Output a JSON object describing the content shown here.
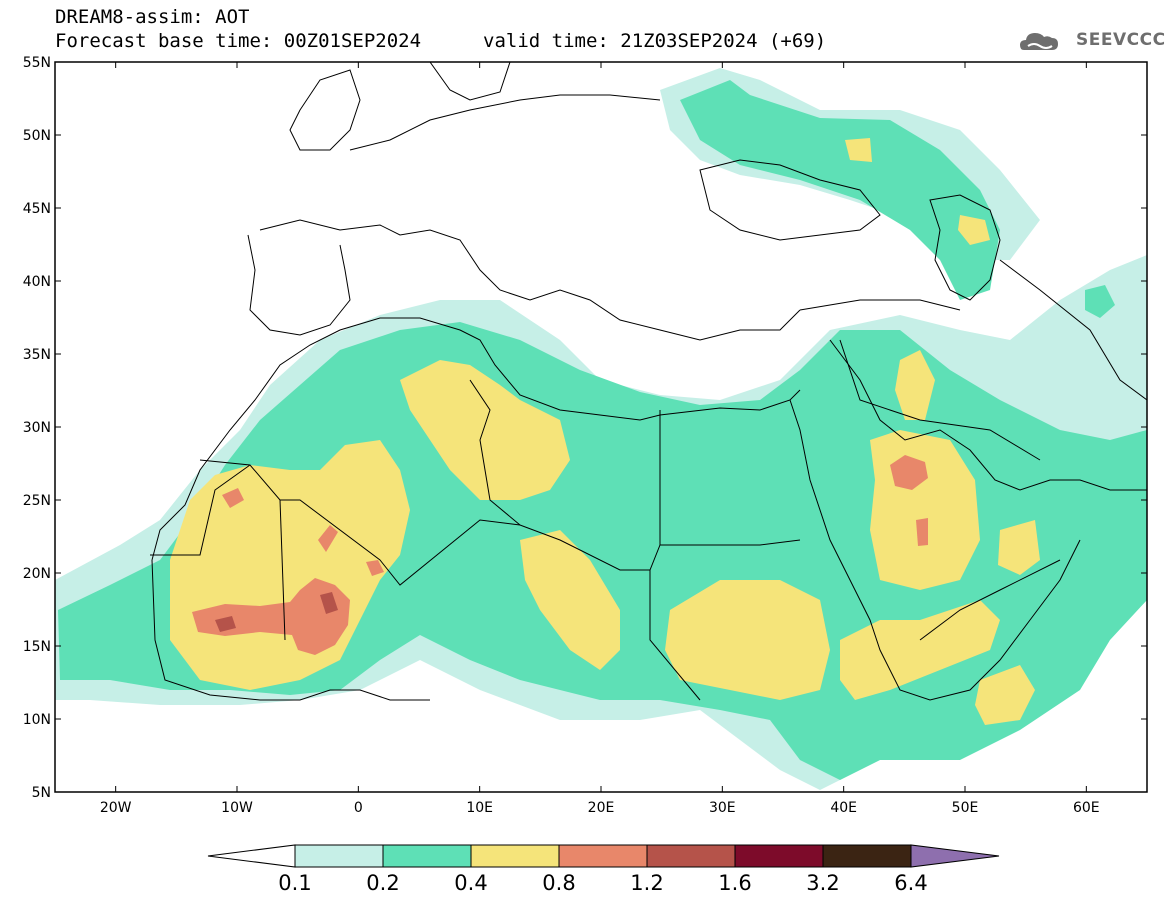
{
  "header": {
    "title": "DREAM8-assim: AOT",
    "base_time": "Forecast base time: 00Z01SEP2024",
    "valid_time": "valid time: 21Z03SEP2024 (+69)",
    "logo_text": "SEEVCCC"
  },
  "map": {
    "lat_labels": [
      "55N",
      "50N",
      "45N",
      "40N",
      "35N",
      "30N",
      "25N",
      "20N",
      "15N",
      "10N",
      "5N"
    ],
    "lon_labels": [
      "20W",
      "10W",
      "0",
      "10E",
      "20E",
      "30E",
      "40E",
      "50E",
      "60E"
    ],
    "extent": {
      "lon": [
        -25,
        65
      ],
      "lat": [
        5,
        55
      ]
    }
  },
  "colorbar": {
    "labels": [
      "0.1",
      "0.2",
      "0.4",
      "0.8",
      "1.2",
      "1.6",
      "3.2",
      "6.4"
    ],
    "colors": [
      "#c6efe7",
      "#5ee0b6",
      "#f5e47a",
      "#e8876a",
      "#b5534a",
      "#7d0b2a",
      "#3b2413",
      "#8e6fae"
    ]
  }
}
